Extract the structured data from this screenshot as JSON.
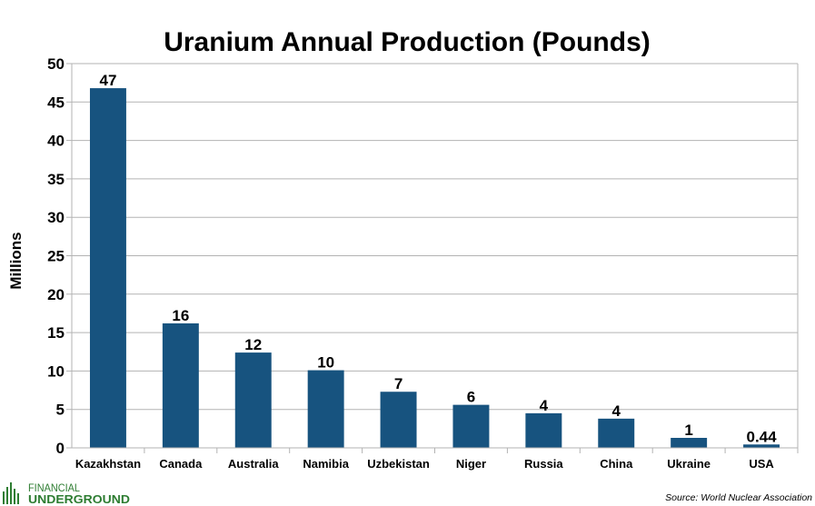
{
  "chart_data": {
    "type": "bar",
    "title": "Uranium Annual Production (Pounds)",
    "ylabel": "Millions",
    "xlabel": "",
    "ylim": [
      0,
      50
    ],
    "yticks": [
      0,
      5,
      10,
      15,
      20,
      25,
      30,
      35,
      40,
      45,
      50
    ],
    "grid": true,
    "bar_color": "#17537f",
    "categories": [
      "Kazakhstan",
      "Canada",
      "Australia",
      "Namibia",
      "Uzbekistan",
      "Niger",
      "Russia",
      "China",
      "Ukraine",
      "USA"
    ],
    "values": [
      46.8,
      16.2,
      12.4,
      10.1,
      7.3,
      5.6,
      4.5,
      3.8,
      1.3,
      0.44
    ],
    "data_labels": [
      "47",
      "16",
      "12",
      "10",
      "7",
      "6",
      "4",
      "4",
      "1",
      "0.44"
    ]
  },
  "source": "Source:  World Nuclear Association",
  "logo": {
    "line1": "FINANCIAL",
    "line2": "UNDERGROUND",
    "color": "#2e7d32"
  }
}
